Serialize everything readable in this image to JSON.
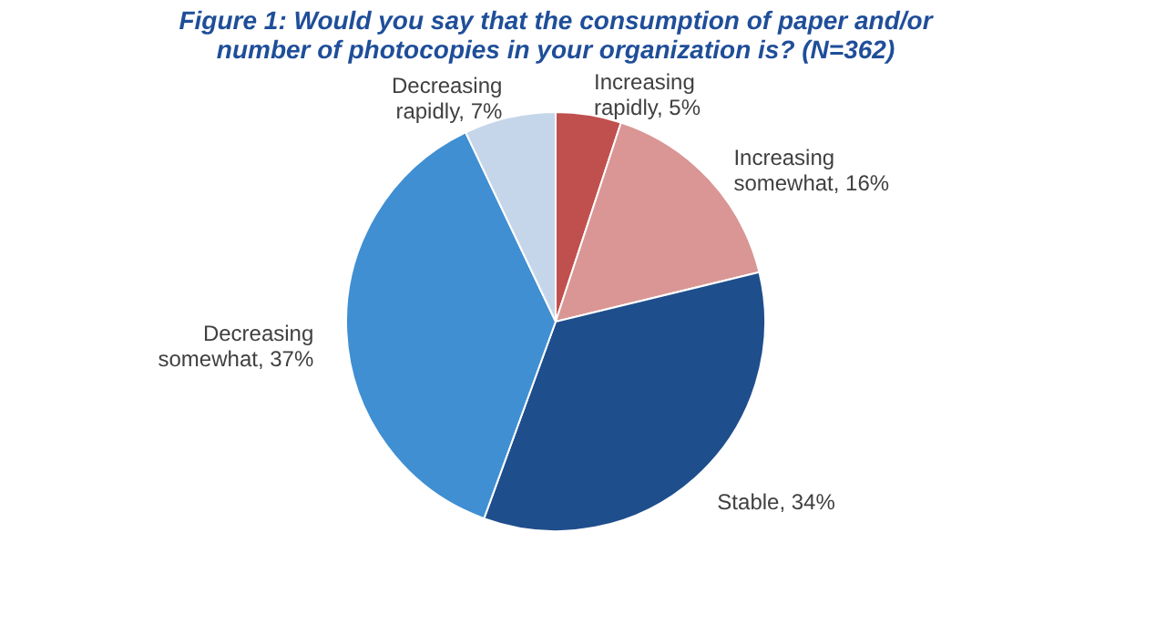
{
  "chart_data": {
    "type": "pie",
    "title": "Figure 1: Would you say that the consumption of paper and/or number of photocopies in your organization is? (N=362)",
    "categories": [
      "Increasing rapidly",
      "Increasing somewhat",
      "Stable",
      "Decreasing somewhat",
      "Decreasing rapidly"
    ],
    "values": [
      5,
      16,
      34,
      37,
      7
    ],
    "colors": [
      "#c0504d",
      "#d99694",
      "#1f4e8c",
      "#3f8fd2",
      "#c6d6ea"
    ],
    "value_labels": [
      "5%",
      "16%",
      "34%",
      "37%",
      "7%"
    ]
  }
}
